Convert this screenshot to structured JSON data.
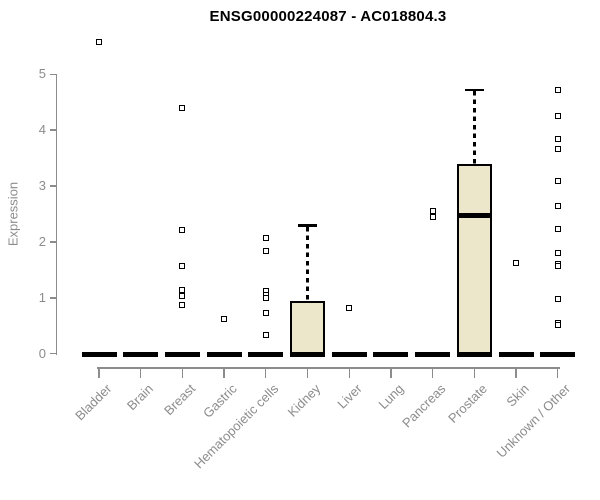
{
  "chart_data": {
    "type": "boxplot",
    "title": "ENSG00000224087 - AC018804.3",
    "ylabel": "Expression",
    "yticks": [
      0,
      1,
      2,
      3,
      4,
      5
    ],
    "ylim": [
      0,
      5
    ],
    "grid": false,
    "colors": {
      "box_fill": "#ECE7CB",
      "box_border": "#000000",
      "axis": "#8C8C8C",
      "axis_text": "#8C8C8C",
      "title_text": "#000000"
    },
    "categories": [
      {
        "label": "Bladder",
        "median": 0,
        "outliers": [
          5.58
        ]
      },
      {
        "label": "Brain",
        "median": 0,
        "outliers": []
      },
      {
        "label": "Breast",
        "median": 0,
        "outliers": [
          4.39,
          2.21,
          1.57,
          1.14,
          1.03,
          0.87
        ]
      },
      {
        "label": "Gastric",
        "median": 0,
        "outliers": [
          0.62
        ]
      },
      {
        "label": "Hematopoietic cells",
        "median": 0,
        "outliers": [
          2.07,
          1.84,
          1.12,
          1.05,
          0.99,
          0.72,
          0.34
        ]
      },
      {
        "label": "Kidney",
        "median": 0,
        "box": {
          "q1": 0,
          "q3": 0.95,
          "whisker_high": 2.29
        },
        "outliers": []
      },
      {
        "label": "Liver",
        "median": 0,
        "outliers": [
          0.81
        ]
      },
      {
        "label": "Lung",
        "median": 0,
        "outliers": []
      },
      {
        "label": "Pancreas",
        "median": 0,
        "outliers": [
          2.56,
          2.44
        ]
      },
      {
        "label": "Prostate",
        "median": 2.47,
        "box": {
          "q1": 0,
          "q3": 3.39,
          "whisker_high": 4.72
        },
        "outliers": []
      },
      {
        "label": "Skin",
        "median": 0,
        "outliers": [
          1.63
        ]
      },
      {
        "label": "Unknown / Other",
        "median": 0,
        "outliers": [
          4.72,
          4.25,
          3.84,
          3.66,
          3.09,
          2.65,
          2.23,
          1.81,
          1.6,
          1.57,
          0.98,
          0.55,
          0.52
        ]
      }
    ]
  }
}
